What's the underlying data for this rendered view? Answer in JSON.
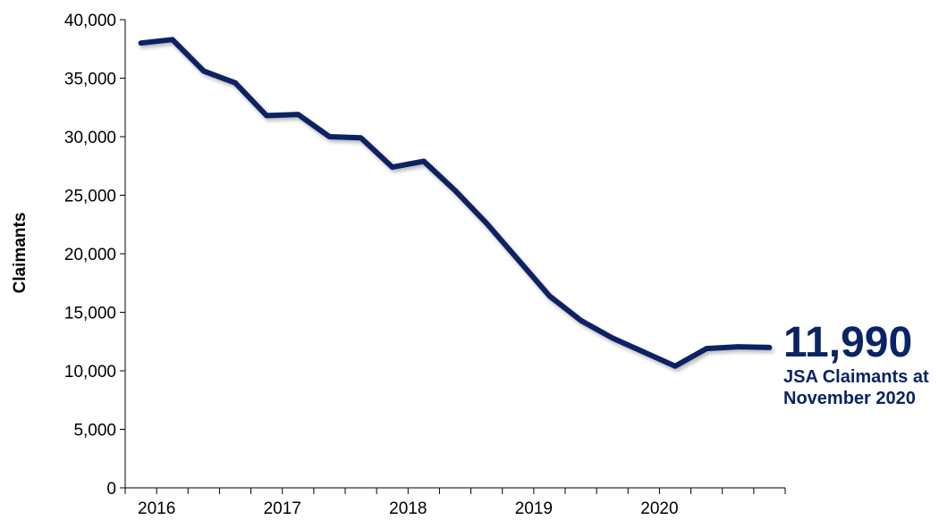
{
  "chart_data": {
    "type": "line",
    "ylabel": "Claimants",
    "ylim": [
      0,
      40000
    ],
    "y_ticks": [
      0,
      5000,
      10000,
      15000,
      20000,
      25000,
      30000,
      35000,
      40000
    ],
    "y_tick_labels": [
      "0",
      "5,000",
      "10,000",
      "15,000",
      "20,000",
      "25,000",
      "30,000",
      "35,000",
      "40,000"
    ],
    "x_year_labels": [
      "2016",
      "2017",
      "2018",
      "2019",
      "2020"
    ],
    "x": [
      "2015 Q4",
      "2016 Q1",
      "2016 Q2",
      "2016 Q3",
      "2016 Q4",
      "2017 Q1",
      "2017 Q2",
      "2017 Q3",
      "2017 Q4",
      "2018 Q1",
      "2018 Q2",
      "2018 Q3",
      "2018 Q4",
      "2019 Q1",
      "2019 Q2",
      "2019 Q3",
      "2019 Q4",
      "2020 Q1",
      "2020 Q2",
      "2020 Q3",
      "2020 Q4"
    ],
    "series": [
      {
        "values": [
          38000,
          38300,
          35600,
          34600,
          31800,
          31900,
          30000,
          29900,
          27400,
          27900,
          25400,
          22600,
          19500,
          16400,
          14300,
          12800,
          11600,
          10400,
          11900,
          12050,
          11990
        ]
      }
    ],
    "line_color": "#0a2463",
    "grid": false
  },
  "callout": {
    "value": "11,990",
    "text": "JSA Claimants at November 2020"
  }
}
